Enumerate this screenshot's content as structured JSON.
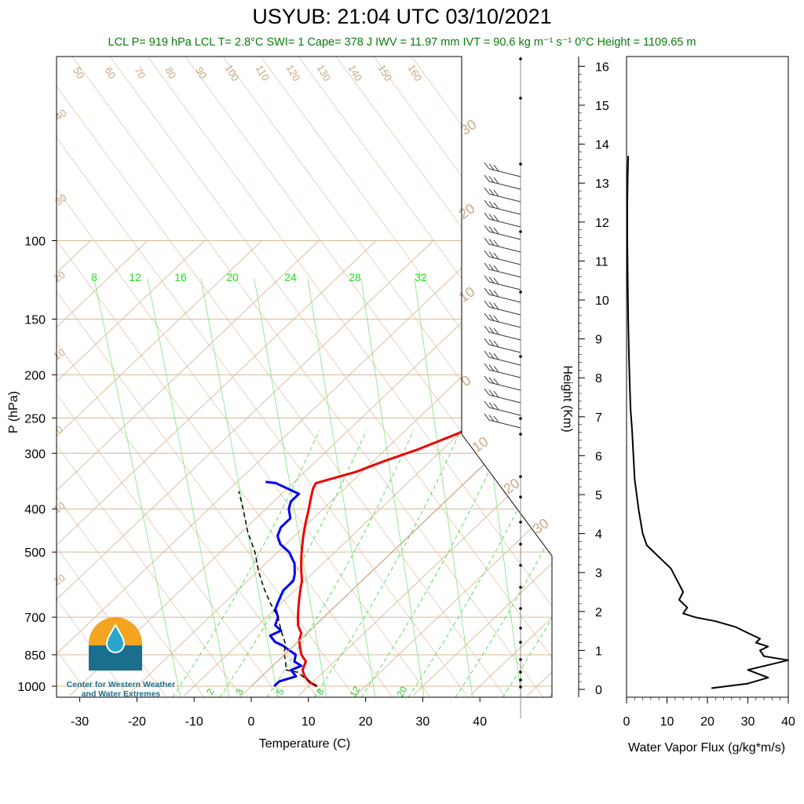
{
  "title": "USYUB: 21:04 UTC 03/10/2021",
  "subtitle": "LCL P= 919 hPa  LCL T= 2.8°C  SWI= 1  Cape= 378 J  IWV = 11.97 mm  IVT = 90.6 kg m⁻¹ s⁻¹  0°C Height = 1109.65 m",
  "logo": {
    "line1": "Center for Western Weather",
    "line2": "and Water Extremes"
  },
  "colors": {
    "temperature": "#ee0000",
    "dewpoint": "#0000ee",
    "parcel": "#000000",
    "dry_adiabat": "#d8b896",
    "moist_adiabat": "#44dd44",
    "isotherm": "#d8b896"
  },
  "chart_data": [
    {
      "type": "line",
      "chart": "skew-T log-P sounding",
      "xlabel": "Temperature (C)",
      "ylabel": "P (hPa)",
      "xticks": [
        -30,
        -20,
        -10,
        0,
        10,
        20,
        30,
        40
      ],
      "yticks": [
        100,
        150,
        200,
        250,
        300,
        400,
        500,
        700,
        850,
        1000
      ],
      "xlim": [
        -34,
        45
      ],
      "ylim": [
        1050,
        100
      ],
      "y_scale": "log",
      "mixing_ratio_labels": [
        "8",
        "12",
        "16",
        "20",
        "24",
        "28",
        "32"
      ],
      "mixing_ratio_small_labels": [
        "2",
        "3",
        "5",
        "8",
        "12",
        "20"
      ],
      "dry_adiabat_labels": [
        "50",
        "60",
        "70",
        "80",
        "90",
        "100",
        "110",
        "120",
        "130",
        "140",
        "150",
        "160"
      ],
      "isotherm_labels": [
        "40",
        "30",
        "20",
        "10",
        "0",
        "10",
        "20",
        "30",
        "20",
        "10",
        "0",
        "10",
        "20",
        "30"
      ],
      "series": [
        {
          "name": "Temperature",
          "points": [
            [
              11.5,
              1000
            ],
            [
              9.5,
              980
            ],
            [
              7.5,
              950
            ],
            [
              6,
              920
            ],
            [
              5,
              880
            ],
            [
              3,
              850
            ],
            [
              1.5,
              820
            ],
            [
              0,
              790
            ],
            [
              -1,
              760
            ],
            [
              -3,
              730
            ],
            [
              -4.5,
              700
            ],
            [
              -6,
              670
            ],
            [
              -7.5,
              640
            ],
            [
              -9,
              610
            ],
            [
              -10.5,
              580
            ],
            [
              -12.5,
              550
            ],
            [
              -14.5,
              520
            ],
            [
              -16.5,
              490
            ],
            [
              -18.5,
              460
            ],
            [
              -20.5,
              430
            ],
            [
              -22.5,
              400
            ],
            [
              -24,
              380
            ],
            [
              -25.5,
              360
            ],
            [
              -26,
              350
            ],
            [
              -24,
              342
            ],
            [
              -21,
              330
            ],
            [
              -18,
              312
            ],
            [
              -14.5,
              295
            ],
            [
              -11,
              275
            ],
            [
              -8,
              258
            ],
            [
              -5.5,
              240
            ],
            [
              -3,
              222
            ],
            [
              -1.5,
              205
            ],
            [
              0.5,
              190
            ],
            [
              2,
              177
            ],
            [
              3,
              167
            ],
            [
              4,
              158
            ],
            [
              5,
              151
            ]
          ]
        },
        {
          "name": "Dewpoint",
          "points": [
            [
              4,
              1000
            ],
            [
              4,
              975
            ],
            [
              6,
              950
            ],
            [
              4,
              920
            ],
            [
              5,
              900
            ],
            [
              3,
              880
            ],
            [
              2,
              850
            ],
            [
              0,
              830
            ],
            [
              -2,
              810
            ],
            [
              -4,
              795
            ],
            [
              -6,
              770
            ],
            [
              -5,
              750
            ],
            [
              -7,
              730
            ],
            [
              -8,
              700
            ],
            [
              -10,
              670
            ],
            [
              -11,
              640
            ],
            [
              -12,
              610
            ],
            [
              -12,
              580
            ],
            [
              -13,
              560
            ],
            [
              -15,
              530
            ],
            [
              -18,
              500
            ],
            [
              -21,
              480
            ],
            [
              -23,
              460
            ],
            [
              -24,
              440
            ],
            [
              -24,
              420
            ],
            [
              -26,
              400
            ],
            [
              -27,
              385
            ],
            [
              -27,
              370
            ],
            [
              -30,
              360
            ],
            [
              -33,
              350
            ],
            [
              -35,
              348
            ]
          ]
        },
        {
          "name": "Parcel",
          "points": [
            [
              11.5,
              1000
            ],
            [
              8,
              960
            ],
            [
              5.5,
              930
            ],
            [
              3,
              919
            ],
            [
              1.5,
              880
            ],
            [
              0,
              850
            ],
            [
              -2,
              800
            ],
            [
              -5,
              750
            ],
            [
              -8,
              700
            ],
            [
              -12,
              650
            ],
            [
              -16,
              600
            ],
            [
              -20,
              550
            ],
            [
              -24,
              500
            ],
            [
              -29,
              450
            ],
            [
              -34,
              400
            ],
            [
              -38,
              365
            ]
          ]
        },
        {
          "name": "0C isotherm",
          "points": [
            [
              0,
              1000
            ],
            [
              0,
              850
            ],
            [
              0,
              700
            ],
            [
              0,
              500
            ],
            [
              0,
              400
            ],
            [
              0,
              300
            ],
            [
              0,
              230
            ],
            [
              0,
              200
            ],
            [
              0,
              100
            ]
          ]
        }
      ]
    },
    {
      "type": "line",
      "xlabel": "Water Vapor Flux (g/kg*m/s)",
      "ylabel": "Height (Km)",
      "xticks": [
        0,
        10,
        20,
        30,
        40
      ],
      "yticks": [
        0,
        1,
        2,
        3,
        4,
        5,
        6,
        7,
        8,
        9,
        10,
        11,
        12,
        13,
        14,
        15,
        16
      ],
      "xlim": [
        0,
        40
      ],
      "ylim": [
        -0.2,
        16.2
      ],
      "series": [
        {
          "name": "Water Vapor Flux",
          "points": [
            [
              21,
              0.03
            ],
            [
              30,
              0.15
            ],
            [
              35,
              0.3
            ],
            [
              30,
              0.5
            ],
            [
              36,
              0.65
            ],
            [
              40,
              0.75
            ],
            [
              34,
              0.85
            ],
            [
              33,
              1.0
            ],
            [
              35,
              1.1
            ],
            [
              32,
              1.2
            ],
            [
              33,
              1.3
            ],
            [
              30,
              1.45
            ],
            [
              27,
              1.6
            ],
            [
              22,
              1.75
            ],
            [
              17,
              1.85
            ],
            [
              14,
              1.95
            ],
            [
              15,
              2.1
            ],
            [
              13,
              2.3
            ],
            [
              14,
              2.5
            ],
            [
              13,
              2.7
            ],
            [
              12,
              2.9
            ],
            [
              11,
              3.1
            ],
            [
              9,
              3.3
            ],
            [
              7,
              3.5
            ],
            [
              5,
              3.7
            ],
            [
              4,
              4.0
            ],
            [
              3.5,
              4.3
            ],
            [
              3,
              4.6
            ],
            [
              2.5,
              5.0
            ],
            [
              2,
              5.4
            ],
            [
              1.8,
              5.8
            ],
            [
              1.6,
              6.2
            ],
            [
              1.4,
              6.6
            ],
            [
              1,
              7.2
            ],
            [
              0.8,
              7.8
            ],
            [
              0.6,
              8.5
            ],
            [
              0.4,
              9.5
            ],
            [
              0.3,
              10.5
            ],
            [
              0.2,
              11.5
            ],
            [
              0.2,
              12.5
            ],
            [
              0.3,
              13.2
            ],
            [
              0.4,
              13.7
            ]
          ]
        }
      ]
    }
  ]
}
